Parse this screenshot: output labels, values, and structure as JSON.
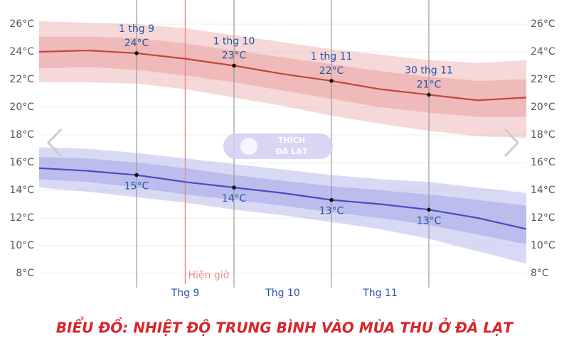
{
  "chart_data": {
    "type": "line",
    "title": "BIỂU ĐỒ: NHIỆT ĐỘ TRUNG BÌNH VÀO MÙA THU Ở ĐÀ LẠT",
    "categories": [
      null,
      null,
      null,
      "Thg 9",
      null,
      "Thg 10",
      null,
      "Thg 11",
      null,
      null,
      null
    ],
    "ylim": [
      8,
      26
    ],
    "yticks": [
      {
        "value": 8,
        "label": "8°C"
      },
      {
        "value": 10,
        "label": "10°C"
      },
      {
        "value": 12,
        "label": "12°C"
      },
      {
        "value": 14,
        "label": "14°C"
      },
      {
        "value": 16,
        "label": "16°C"
      },
      {
        "value": 18,
        "label": "18°C"
      },
      {
        "value": 20,
        "label": "20°C"
      },
      {
        "value": 22,
        "label": "22°C"
      },
      {
        "value": 24,
        "label": "24°C"
      },
      {
        "value": 26,
        "label": "26°C"
      }
    ],
    "grid": true,
    "series": [
      {
        "color": "#c4453b",
        "band_color": "#e9a9a6",
        "values": [
          24.0,
          24.1,
          23.9,
          23.5,
          23.0,
          22.4,
          21.9,
          21.3,
          20.9,
          20.5,
          20.7
        ],
        "value_labels": [
          null,
          null,
          "24°C",
          null,
          "23°C",
          null,
          "22°C",
          null,
          "21°C",
          null,
          null
        ],
        "p75": [
          25.1,
          25.1,
          25.0,
          24.6,
          24.1,
          23.6,
          23.1,
          22.6,
          22.2,
          21.9,
          22.0
        ],
        "p25": [
          22.8,
          22.9,
          22.7,
          22.3,
          21.8,
          21.2,
          20.6,
          20.0,
          19.6,
          19.3,
          19.3
        ],
        "p90": [
          26.2,
          26.1,
          26.0,
          25.7,
          25.2,
          24.7,
          24.2,
          23.8,
          23.4,
          23.2,
          23.4
        ],
        "p10": [
          21.8,
          21.8,
          21.7,
          21.3,
          20.7,
          20.1,
          19.4,
          18.8,
          18.3,
          17.9,
          17.8
        ],
        "label_side": "above"
      },
      {
        "color": "#4a4cc0",
        "band_color": "#a9aae6",
        "values": [
          15.6,
          15.4,
          15.1,
          14.6,
          14.2,
          13.8,
          13.3,
          13.0,
          12.6,
          12.0,
          11.2
        ],
        "value_labels": [
          null,
          null,
          "15°C",
          null,
          "14°C",
          null,
          "13°C",
          null,
          "13°C",
          null,
          null
        ],
        "p75": [
          16.4,
          16.3,
          16.0,
          15.6,
          15.1,
          14.7,
          14.3,
          14.0,
          13.7,
          13.3,
          12.9
        ],
        "p25": [
          14.8,
          14.6,
          14.2,
          13.7,
          13.3,
          12.9,
          12.4,
          12.0,
          11.5,
          10.8,
          10.1
        ],
        "p90": [
          17.1,
          17.0,
          16.7,
          16.3,
          15.9,
          15.5,
          15.1,
          14.8,
          14.6,
          14.2,
          13.8
        ],
        "p10": [
          14.2,
          13.9,
          13.5,
          13.1,
          12.6,
          12.2,
          11.7,
          11.2,
          10.5,
          9.6,
          8.7
        ],
        "label_side": "below"
      }
    ],
    "annotations": [
      {
        "index": 2,
        "label": "1 thg 9"
      },
      {
        "index": 4,
        "label": "1 thg 10"
      },
      {
        "index": 6,
        "label": "1 thg 11"
      },
      {
        "index": 8,
        "label": "30 thg 11"
      }
    ],
    "now_marker": {
      "index": 3,
      "label": "Hiện giờ"
    }
  },
  "watermark": {
    "line1": "THÍCH",
    "line2": "ĐÀ LẠT"
  }
}
